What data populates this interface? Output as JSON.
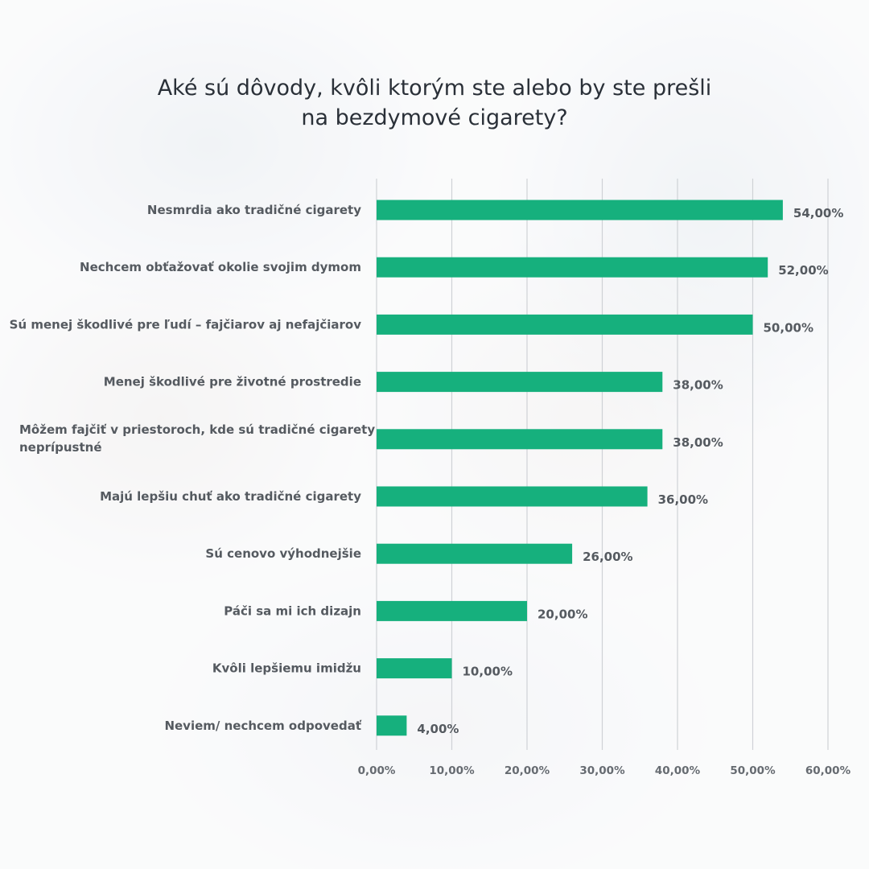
{
  "chart_data": {
    "type": "bar",
    "orientation": "horizontal",
    "title": [
      "Aké sú dôvody, kvôli ktorým ste alebo by ste prešli",
      "na bezdymové cigarety?"
    ],
    "categories": [
      [
        "Nesmrdia ako tradičné cigarety"
      ],
      [
        "Nechcem obťažovať okolie svojim dymom"
      ],
      [
        "Sú menej škodlivé pre ľudí – fajčiarov aj nefajčiarov"
      ],
      [
        "Menej škodlivé pre životné prostredie"
      ],
      [
        "Môžem fajčiť v priestoroch, kde sú tradičné cigarety",
        "neprípustné"
      ],
      [
        "Majú lepšiu chuť ako tradičné cigarety"
      ],
      [
        "Sú cenovo výhodnejšie"
      ],
      [
        "Páči sa mi ich dizajn"
      ],
      [
        "Kvôli lepšiemu imidžu"
      ],
      [
        "Neviem/ nechcem odpovedať"
      ]
    ],
    "values": [
      54,
      52,
      50,
      38,
      38,
      36,
      26,
      20,
      10,
      4
    ],
    "value_labels": [
      "54,00%",
      "52,00%",
      "50,00%",
      "38,00%",
      "38,00%",
      "36,00%",
      "26,00%",
      "20,00%",
      "10,00%",
      "4,00%"
    ],
    "xlim": [
      0,
      60
    ],
    "xticks": [
      0,
      10,
      20,
      30,
      40,
      50,
      60
    ],
    "xtick_labels": [
      "0,00%",
      "10,00%",
      "20,00%",
      "30,00%",
      "40,00%",
      "50,00%",
      "60,00%"
    ],
    "grid": true,
    "legend": "none",
    "bar_color": "#16b07d"
  }
}
